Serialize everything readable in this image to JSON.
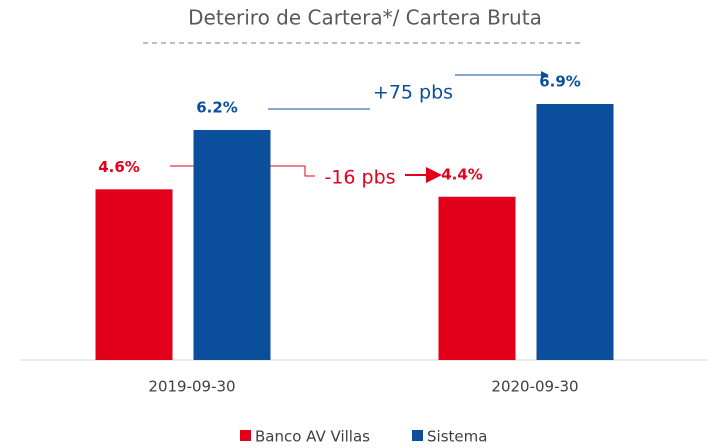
{
  "chart_data": {
    "type": "bar",
    "title": "Deteriro de Cartera*/ Cartera Bruta",
    "categories": [
      "2019-09-30",
      "2020-09-30"
    ],
    "series": [
      {
        "name": "Banco AV Villas",
        "color": "#e2001a",
        "values": [
          4.6,
          4.4
        ],
        "value_labels": [
          "4.6%",
          "4.4%"
        ]
      },
      {
        "name": "Sistema",
        "color": "#0b4f9c",
        "values": [
          6.2,
          6.9
        ],
        "value_labels": [
          "6.2%",
          "6.9%"
        ]
      }
    ],
    "annotations": [
      {
        "text": "+75 pbs",
        "color": "#0b4f9c"
      },
      {
        "text": "-16 pbs",
        "color": "#e2001a"
      }
    ],
    "legend": "bottom"
  }
}
